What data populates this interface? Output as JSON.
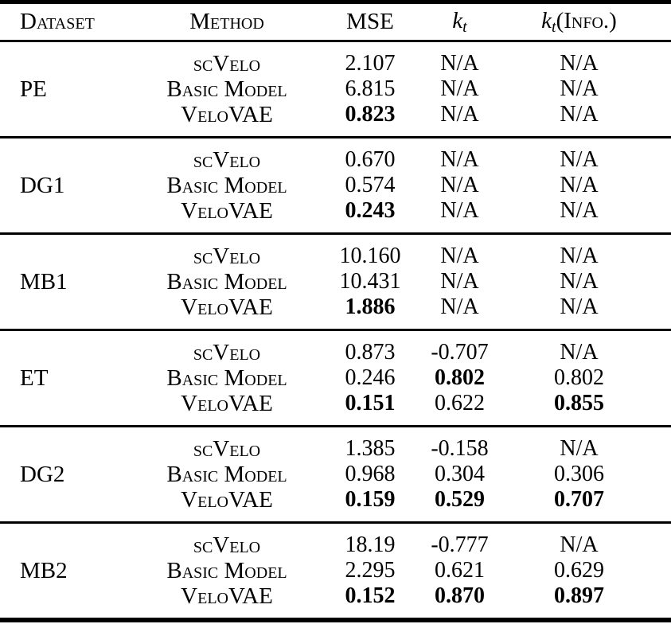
{
  "colors": {
    "text": "#000000",
    "background": "#ffffff",
    "rule": "#000000"
  },
  "header": {
    "dataset": "Dataset",
    "method": "Method",
    "mse": "MSE",
    "kt": {
      "base": "k",
      "sub": "t"
    },
    "kt_info": {
      "base": "k",
      "sub": "t",
      "suffix": "(Info.)"
    }
  },
  "sections": [
    {
      "dataset": "PE",
      "rows": [
        {
          "method": "scVelo",
          "mse": {
            "v": "2.107",
            "bold": false
          },
          "kt": {
            "v": "N/A",
            "bold": false
          },
          "kt_info": {
            "v": "N/A",
            "bold": false
          }
        },
        {
          "method": "Basic Model",
          "mse": {
            "v": "6.815",
            "bold": false
          },
          "kt": {
            "v": "N/A",
            "bold": false
          },
          "kt_info": {
            "v": "N/A",
            "bold": false
          }
        },
        {
          "method": "VeloVAE",
          "mse": {
            "v": "0.823",
            "bold": true
          },
          "kt": {
            "v": "N/A",
            "bold": false
          },
          "kt_info": {
            "v": "N/A",
            "bold": false
          }
        }
      ]
    },
    {
      "dataset": "DG1",
      "rows": [
        {
          "method": "scVelo",
          "mse": {
            "v": "0.670",
            "bold": false
          },
          "kt": {
            "v": "N/A",
            "bold": false
          },
          "kt_info": {
            "v": "N/A",
            "bold": false
          }
        },
        {
          "method": "Basic Model",
          "mse": {
            "v": "0.574",
            "bold": false
          },
          "kt": {
            "v": "N/A",
            "bold": false
          },
          "kt_info": {
            "v": "N/A",
            "bold": false
          }
        },
        {
          "method": "VeloVAE",
          "mse": {
            "v": "0.243",
            "bold": true
          },
          "kt": {
            "v": "N/A",
            "bold": false
          },
          "kt_info": {
            "v": "N/A",
            "bold": false
          }
        }
      ]
    },
    {
      "dataset": "MB1",
      "rows": [
        {
          "method": "scVelo",
          "mse": {
            "v": "10.160",
            "bold": false
          },
          "kt": {
            "v": "N/A",
            "bold": false
          },
          "kt_info": {
            "v": "N/A",
            "bold": false
          }
        },
        {
          "method": "Basic Model",
          "mse": {
            "v": "10.431",
            "bold": false
          },
          "kt": {
            "v": "N/A",
            "bold": false
          },
          "kt_info": {
            "v": "N/A",
            "bold": false
          }
        },
        {
          "method": "VeloVAE",
          "mse": {
            "v": "1.886",
            "bold": true
          },
          "kt": {
            "v": "N/A",
            "bold": false
          },
          "kt_info": {
            "v": "N/A",
            "bold": false
          }
        }
      ]
    },
    {
      "dataset": "ET",
      "rows": [
        {
          "method": "scVelo",
          "mse": {
            "v": "0.873",
            "bold": false
          },
          "kt": {
            "v": "-0.707",
            "bold": false
          },
          "kt_info": {
            "v": "N/A",
            "bold": false
          }
        },
        {
          "method": "Basic Model",
          "mse": {
            "v": "0.246",
            "bold": false
          },
          "kt": {
            "v": "0.802",
            "bold": true
          },
          "kt_info": {
            "v": "0.802",
            "bold": false
          }
        },
        {
          "method": "VeloVAE",
          "mse": {
            "v": "0.151",
            "bold": true
          },
          "kt": {
            "v": "0.622",
            "bold": false
          },
          "kt_info": {
            "v": "0.855",
            "bold": true
          }
        }
      ]
    },
    {
      "dataset": "DG2",
      "rows": [
        {
          "method": "scVelo",
          "mse": {
            "v": "1.385",
            "bold": false
          },
          "kt": {
            "v": "-0.158",
            "bold": false
          },
          "kt_info": {
            "v": "N/A",
            "bold": false
          }
        },
        {
          "method": "Basic Model",
          "mse": {
            "v": "0.968",
            "bold": false
          },
          "kt": {
            "v": "0.304",
            "bold": false
          },
          "kt_info": {
            "v": "0.306",
            "bold": false
          }
        },
        {
          "method": "VeloVAE",
          "mse": {
            "v": "0.159",
            "bold": true
          },
          "kt": {
            "v": "0.529",
            "bold": true
          },
          "kt_info": {
            "v": "0.707",
            "bold": true
          }
        }
      ]
    },
    {
      "dataset": "MB2",
      "rows": [
        {
          "method": "scVelo",
          "mse": {
            "v": "18.19",
            "bold": false
          },
          "kt": {
            "v": "-0.777",
            "bold": false
          },
          "kt_info": {
            "v": "N/A",
            "bold": false
          }
        },
        {
          "method": "Basic Model",
          "mse": {
            "v": "2.295",
            "bold": false
          },
          "kt": {
            "v": "0.621",
            "bold": false
          },
          "kt_info": {
            "v": "0.629",
            "bold": false
          }
        },
        {
          "method": "VeloVAE",
          "mse": {
            "v": "0.152",
            "bold": true
          },
          "kt": {
            "v": "0.870",
            "bold": true
          },
          "kt_info": {
            "v": "0.897",
            "bold": true
          }
        }
      ]
    }
  ]
}
